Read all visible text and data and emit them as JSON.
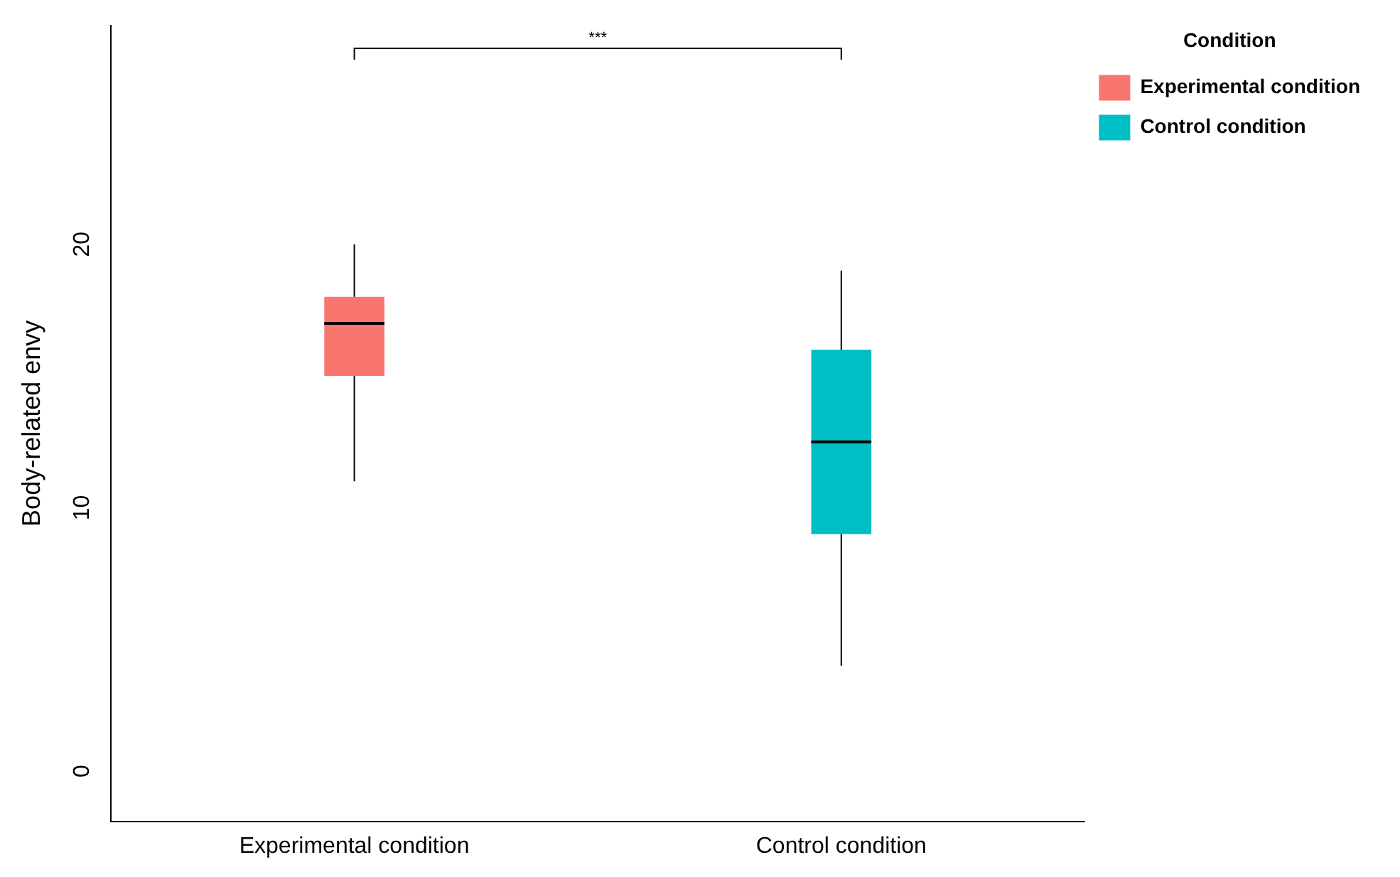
{
  "chart_data": {
    "type": "box",
    "ylabel": "Body-related envy",
    "legend_title": "Condition",
    "categories": [
      "Experimental condition",
      "Control condition"
    ],
    "series": [
      {
        "name": "Experimental condition",
        "color": "#f8766d",
        "boxes": [
          {
            "low": 11,
            "q1": 15,
            "median": 17,
            "q3": 18,
            "high": 20
          },
          null
        ]
      },
      {
        "name": "Control condition",
        "color": "#00bfc4",
        "boxes": [
          null,
          {
            "low": 4,
            "q1": 9,
            "median": 12.5,
            "q3": 16,
            "high": 19
          }
        ]
      }
    ],
    "ylim": [
      -1.9,
      28.3
    ],
    "yticks": [
      0,
      10,
      20
    ],
    "grid": false,
    "legend": "top right",
    "annotations": [
      "***"
    ]
  }
}
